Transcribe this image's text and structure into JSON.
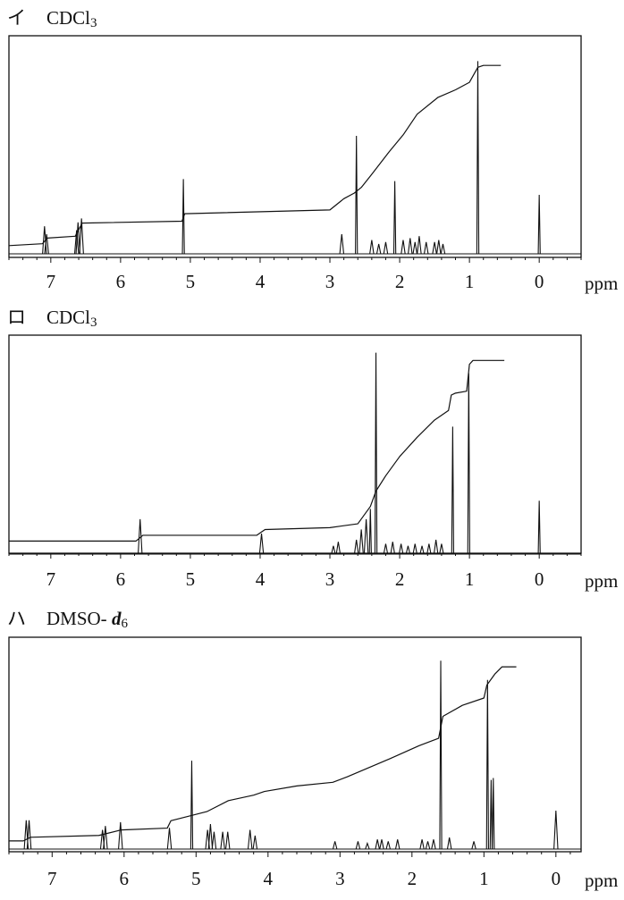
{
  "chart_data": [
    {
      "type": "nmr_spectrum",
      "panel_label": "イ",
      "solvent": "CDCl",
      "solvent_subscript": "3",
      "xlabel": "ppm",
      "x_ticks": [
        "7",
        "6",
        "5",
        "4",
        "3",
        "2",
        "1",
        "0"
      ],
      "xlim": [
        7.6,
        -0.6
      ],
      "peaks": [
        {
          "x": 7.09,
          "h": 0.14
        },
        {
          "x": 7.06,
          "h": 0.1
        },
        {
          "x": 6.63,
          "h": 0.12
        },
        {
          "x": 6.61,
          "h": 0.16
        },
        {
          "x": 6.56,
          "h": 0.18
        },
        {
          "x": 5.1,
          "h": 0.38
        },
        {
          "x": 2.83,
          "h": 0.1
        },
        {
          "x": 2.62,
          "h": 0.6
        },
        {
          "x": 2.4,
          "h": 0.07
        },
        {
          "x": 2.3,
          "h": 0.05
        },
        {
          "x": 2.2,
          "h": 0.06
        },
        {
          "x": 2.07,
          "h": 0.37
        },
        {
          "x": 1.95,
          "h": 0.07
        },
        {
          "x": 1.85,
          "h": 0.08
        },
        {
          "x": 1.78,
          "h": 0.06
        },
        {
          "x": 1.72,
          "h": 0.09
        },
        {
          "x": 1.62,
          "h": 0.06
        },
        {
          "x": 1.5,
          "h": 0.06
        },
        {
          "x": 1.44,
          "h": 0.07
        },
        {
          "x": 1.38,
          "h": 0.05
        },
        {
          "x": 0.88,
          "h": 0.98
        },
        {
          "x": 0.0,
          "h": 0.3
        }
      ],
      "integral": [
        [
          7.6,
          0.02
        ],
        [
          7.12,
          0.03
        ],
        [
          7.05,
          0.06
        ],
        [
          6.65,
          0.07
        ],
        [
          6.55,
          0.14
        ],
        [
          5.12,
          0.15
        ],
        [
          5.08,
          0.19
        ],
        [
          3.0,
          0.21
        ],
        [
          2.8,
          0.27
        ],
        [
          2.65,
          0.3
        ],
        [
          2.55,
          0.33
        ],
        [
          2.4,
          0.4
        ],
        [
          2.15,
          0.52
        ],
        [
          1.95,
          0.61
        ],
        [
          1.75,
          0.72
        ],
        [
          1.45,
          0.81
        ],
        [
          1.2,
          0.85
        ],
        [
          1.0,
          0.89
        ],
        [
          0.88,
          0.97
        ],
        [
          0.8,
          0.98
        ],
        [
          0.55,
          0.98
        ]
      ]
    },
    {
      "type": "nmr_spectrum",
      "panel_label": "ロ",
      "solvent": "CDCl",
      "solvent_subscript": "3",
      "xlabel": "ppm",
      "x_ticks": [
        "7",
        "6",
        "5",
        "4",
        "3",
        "2",
        "1",
        "0"
      ],
      "xlim": [
        7.6,
        -0.6
      ],
      "peaks": [
        {
          "x": 5.72,
          "h": 0.17
        },
        {
          "x": 3.98,
          "h": 0.1
        },
        {
          "x": 2.95,
          "h": 0.04
        },
        {
          "x": 2.88,
          "h": 0.06
        },
        {
          "x": 2.62,
          "h": 0.07
        },
        {
          "x": 2.55,
          "h": 0.12
        },
        {
          "x": 2.48,
          "h": 0.17
        },
        {
          "x": 2.42,
          "h": 0.22
        },
        {
          "x": 2.34,
          "h": 0.98
        },
        {
          "x": 2.2,
          "h": 0.05
        },
        {
          "x": 2.1,
          "h": 0.06
        },
        {
          "x": 1.98,
          "h": 0.05
        },
        {
          "x": 1.88,
          "h": 0.04
        },
        {
          "x": 1.78,
          "h": 0.05
        },
        {
          "x": 1.68,
          "h": 0.04
        },
        {
          "x": 1.58,
          "h": 0.05
        },
        {
          "x": 1.48,
          "h": 0.07
        },
        {
          "x": 1.4,
          "h": 0.05
        },
        {
          "x": 1.24,
          "h": 0.62
        },
        {
          "x": 1.01,
          "h": 0.88
        },
        {
          "x": 0.0,
          "h": 0.26
        }
      ],
      "integral": [
        [
          7.6,
          0.04
        ],
        [
          5.78,
          0.04
        ],
        [
          5.68,
          0.07
        ],
        [
          4.05,
          0.07
        ],
        [
          3.93,
          0.1
        ],
        [
          3.0,
          0.11
        ],
        [
          2.6,
          0.13
        ],
        [
          2.42,
          0.22
        ],
        [
          2.34,
          0.3
        ],
        [
          2.2,
          0.38
        ],
        [
          2.0,
          0.48
        ],
        [
          1.75,
          0.58
        ],
        [
          1.5,
          0.67
        ],
        [
          1.3,
          0.72
        ],
        [
          1.26,
          0.8
        ],
        [
          1.2,
          0.81
        ],
        [
          1.04,
          0.82
        ],
        [
          1.0,
          0.96
        ],
        [
          0.95,
          0.98
        ],
        [
          0.5,
          0.98
        ]
      ]
    },
    {
      "type": "nmr_spectrum",
      "panel_label": "ハ",
      "solvent": "DMSO- ",
      "solvent_italic": "d",
      "solvent_subscript": "6",
      "xlabel": "ppm",
      "x_ticks": [
        "7",
        "6",
        "5",
        "4",
        "3",
        "2",
        "1",
        "0"
      ],
      "xlim": [
        7.6,
        -0.35
      ],
      "peaks": [
        {
          "x": 7.36,
          "h": 0.15
        },
        {
          "x": 7.32,
          "h": 0.15
        },
        {
          "x": 6.3,
          "h": 0.1
        },
        {
          "x": 6.26,
          "h": 0.12
        },
        {
          "x": 6.05,
          "h": 0.14
        },
        {
          "x": 5.37,
          "h": 0.11
        },
        {
          "x": 5.06,
          "h": 0.46
        },
        {
          "x": 4.84,
          "h": 0.1
        },
        {
          "x": 4.8,
          "h": 0.13
        },
        {
          "x": 4.75,
          "h": 0.09
        },
        {
          "x": 4.63,
          "h": 0.09
        },
        {
          "x": 4.56,
          "h": 0.09
        },
        {
          "x": 4.25,
          "h": 0.1
        },
        {
          "x": 4.18,
          "h": 0.07
        },
        {
          "x": 3.07,
          "h": 0.04
        },
        {
          "x": 2.75,
          "h": 0.04
        },
        {
          "x": 2.62,
          "h": 0.03
        },
        {
          "x": 2.48,
          "h": 0.05
        },
        {
          "x": 2.42,
          "h": 0.05
        },
        {
          "x": 2.33,
          "h": 0.04
        },
        {
          "x": 2.2,
          "h": 0.05
        },
        {
          "x": 1.86,
          "h": 0.05
        },
        {
          "x": 1.78,
          "h": 0.04
        },
        {
          "x": 1.7,
          "h": 0.05
        },
        {
          "x": 1.6,
          "h": 0.98
        },
        {
          "x": 1.48,
          "h": 0.06
        },
        {
          "x": 1.14,
          "h": 0.04
        },
        {
          "x": 0.95,
          "h": 0.88
        },
        {
          "x": 0.9,
          "h": 0.36
        },
        {
          "x": 0.87,
          "h": 0.37
        },
        {
          "x": 0.0,
          "h": 0.2
        }
      ],
      "integral": [
        [
          7.6,
          0.02
        ],
        [
          7.4,
          0.02
        ],
        [
          7.3,
          0.04
        ],
        [
          6.35,
          0.05
        ],
        [
          6.04,
          0.08
        ],
        [
          5.4,
          0.09
        ],
        [
          5.35,
          0.13
        ],
        [
          4.85,
          0.18
        ],
        [
          4.55,
          0.24
        ],
        [
          4.2,
          0.27
        ],
        [
          4.05,
          0.29
        ],
        [
          3.6,
          0.32
        ],
        [
          3.1,
          0.34
        ],
        [
          2.9,
          0.37
        ],
        [
          2.6,
          0.42
        ],
        [
          2.3,
          0.47
        ],
        [
          1.9,
          0.54
        ],
        [
          1.63,
          0.58
        ],
        [
          1.57,
          0.7
        ],
        [
          1.3,
          0.76
        ],
        [
          1.0,
          0.8
        ],
        [
          0.96,
          0.87
        ],
        [
          0.85,
          0.93
        ],
        [
          0.75,
          0.97
        ],
        [
          0.55,
          0.97
        ]
      ]
    }
  ]
}
